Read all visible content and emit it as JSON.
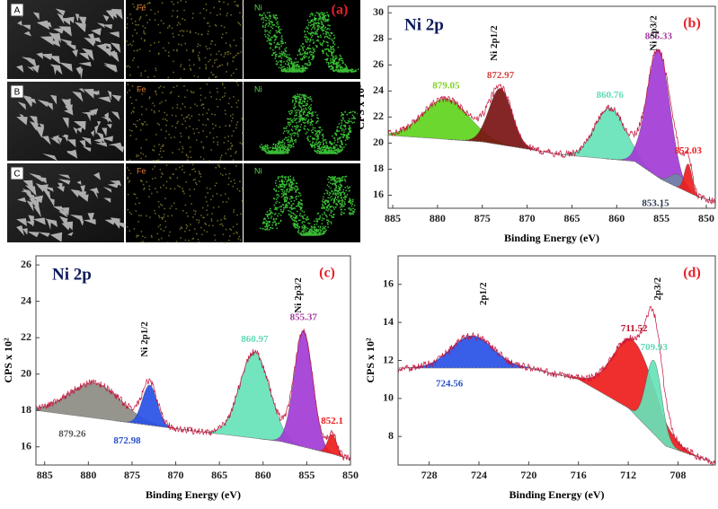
{
  "panel_a": {
    "label": "(a)",
    "rows": [
      {
        "label": "A",
        "maps": [
          "Fe",
          "Ni"
        ]
      },
      {
        "label": "B",
        "maps": [
          "Fe",
          "Ni"
        ]
      },
      {
        "label": "C",
        "maps": [
          "Fe",
          "Ni"
        ]
      }
    ]
  },
  "chart_data": [
    {
      "type": "xps",
      "title": "Ni 2p",
      "panel": "(b)",
      "x_label": "Binding Energy (eV)",
      "y_label": "CPS x 10²",
      "xlim": [
        885.5,
        849
      ],
      "xticks": [
        885,
        880,
        875,
        870,
        865,
        860,
        855,
        850
      ],
      "ylim": [
        15,
        30.5
      ],
      "yticks": [
        16,
        18,
        20,
        22,
        24,
        26,
        28,
        30
      ],
      "baseline_x": [
        885.5,
        875,
        866,
        858,
        855,
        851,
        849
      ],
      "baseline_y": [
        20.6,
        20.1,
        19.1,
        18.6,
        17.2,
        15.9,
        15.5
      ],
      "peaks": [
        {
          "center": 879.05,
          "top": 23.4,
          "fwhm": 6,
          "color": "#5fd41c",
          "label_color": "#7ed321"
        },
        {
          "center": 872.97,
          "top": 24.2,
          "fwhm": 3,
          "color": "#7b1414",
          "label_color": "#d0433f"
        },
        {
          "center": 860.76,
          "top": 22.7,
          "fwhm": 4,
          "color": "#66e3b8",
          "label_color": "#5fd9b6"
        },
        {
          "center": 855.33,
          "top": 27.2,
          "fwhm": 3,
          "color": "#a33bd6",
          "label_color": "#a33ba0"
        },
        {
          "center": 853.15,
          "top": 17.6,
          "fwhm": 2,
          "color": "#7284a8",
          "label_color": "#2b3a55"
        },
        {
          "center": 852.03,
          "top": 18.4,
          "fwhm": 1,
          "color": "#ee1c1c",
          "label_color": "#ee1c1c"
        }
      ],
      "annotations": [
        {
          "text": "Ni 2p1/2",
          "x": 873.6
        },
        {
          "text": "Ni 2p3/2",
          "x": 855.8
        }
      ]
    },
    {
      "type": "xps",
      "title": "Ni 2p",
      "panel": "(c)",
      "x_label": "Binding Energy (eV)",
      "y_label": "CPS x 10²",
      "xlim": [
        886,
        850
      ],
      "xticks": [
        885,
        880,
        875,
        870,
        865,
        860,
        855,
        850
      ],
      "ylim": [
        15,
        26.5
      ],
      "yticks": [
        16,
        18,
        20,
        22,
        24,
        26
      ],
      "baseline_x": [
        886,
        870,
        858,
        852,
        850
      ],
      "baseline_y": [
        18.0,
        17.0,
        16.3,
        15.6,
        15.3
      ],
      "peaks": [
        {
          "center": 879.26,
          "top": 19.5,
          "fwhm": 7,
          "color": "#8c8c84",
          "label_color": "#555555"
        },
        {
          "center": 872.98,
          "top": 19.4,
          "fwhm": 2,
          "color": "#2850e6",
          "label_color": "#2850c8"
        },
        {
          "center": 860.97,
          "top": 21.2,
          "fwhm": 4,
          "color": "#66e3b8",
          "label_color": "#5fd9b6"
        },
        {
          "center": 855.37,
          "top": 22.4,
          "fwhm": 2.5,
          "color": "#a33bd6",
          "label_color": "#a33ba0"
        },
        {
          "center": 852.1,
          "top": 16.7,
          "fwhm": 1.2,
          "color": "#ee1c1c",
          "label_color": "#ee1c1c"
        }
      ],
      "annotations": [
        {
          "text": "Ni 2p1/2",
          "x": 873.5
        },
        {
          "text": "Ni 2p3/2",
          "x": 855.9
        }
      ]
    },
    {
      "type": "xps",
      "panel": "(d)",
      "x_label": "Binding Energy (eV)",
      "y_label": "CPS x 10²",
      "xlim": [
        730.5,
        705
      ],
      "xticks": [
        728,
        724,
        720,
        716,
        712,
        708
      ],
      "ylim": [
        6.5,
        17.5
      ],
      "yticks": [
        8,
        10,
        12,
        14,
        16
      ],
      "baseline_x": [
        730.5,
        720,
        716,
        712,
        709,
        705
      ],
      "baseline_y": [
        11.6,
        11.6,
        11.0,
        9.5,
        7.5,
        6.6
      ],
      "peaks": [
        {
          "center": 724.56,
          "top": 13.3,
          "fwhm": 4,
          "color": "#2850e6",
          "label_color": "#2850c8"
        },
        {
          "center": 711.52,
          "top": 13.0,
          "fwhm": 4,
          "color": "#ee1c1c",
          "label_color": "#c0102a"
        },
        {
          "center": 709.93,
          "top": 12.0,
          "fwhm": 1.5,
          "color": "#66e3b8",
          "label_color": "#5fd9b6"
        }
      ],
      "annotations": [
        {
          "text": "2p1/2",
          "x": 723.6
        },
        {
          "text": "2p3/2",
          "x": 709.6
        }
      ]
    }
  ]
}
